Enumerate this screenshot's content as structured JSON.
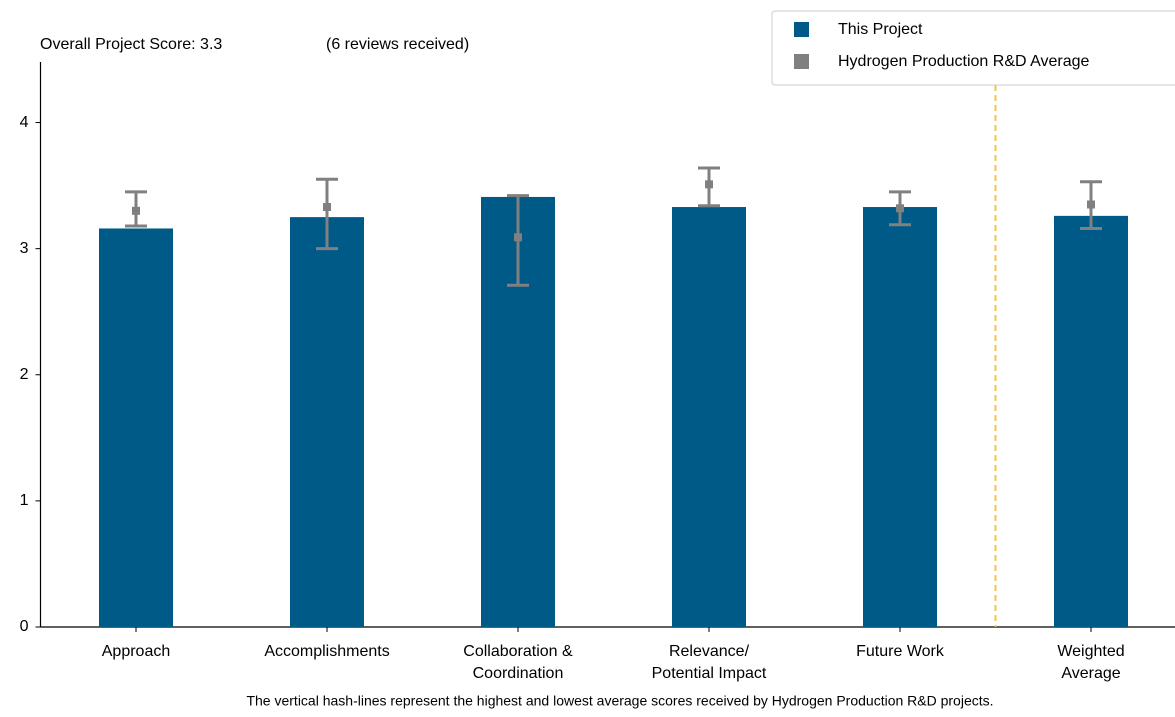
{
  "chart_data": {
    "type": "bar",
    "title": "Overall Project Score: 3.3",
    "subtitle": "(6 reviews received)",
    "categories": [
      "Approach",
      "Accomplishments",
      "Collaboration &\nCoordination",
      "Relevance/\nPotential Impact",
      "Future Work",
      "Weighted\nAverage"
    ],
    "series": [
      {
        "name": "This Project",
        "color": "#005a87",
        "values": [
          3.16,
          3.25,
          3.41,
          3.33,
          3.33,
          3.26
        ]
      },
      {
        "name": "Hydrogen Production R&D Average",
        "color": "#808080",
        "values": [
          3.3,
          3.33,
          3.09,
          3.51,
          3.32,
          3.35
        ],
        "high": [
          3.45,
          3.55,
          3.42,
          3.64,
          3.45,
          3.53
        ],
        "low": [
          3.18,
          3.0,
          2.71,
          3.34,
          3.19,
          3.16
        ]
      }
    ],
    "ylim": [
      0,
      4.48
    ],
    "yticks": [
      0,
      1,
      2,
      3,
      4
    ],
    "grid": false,
    "legend": "upper right",
    "annotation": "The vertical hash-lines represent the highest and lowest average scores received by Hydrogen Production R&D projects."
  }
}
